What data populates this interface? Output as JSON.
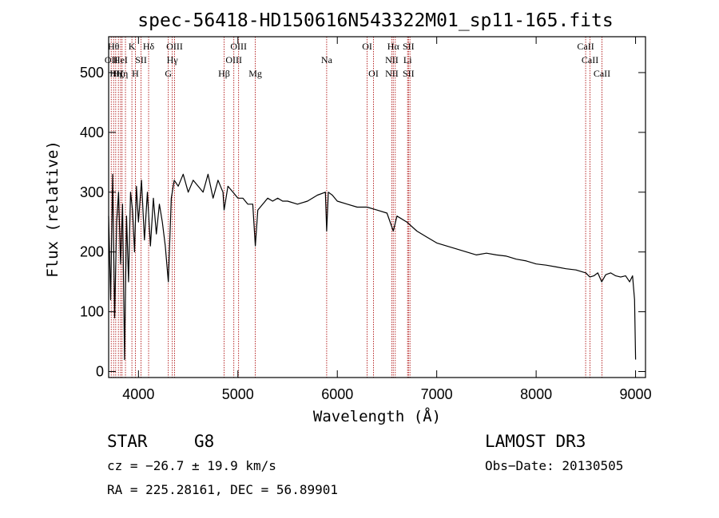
{
  "chart_data": {
    "type": "line",
    "title": "spec-56418-HD150616N543322M01_sp11-165.fits",
    "xlabel": "Wavelength (Å)",
    "ylabel": "Flux (relative)",
    "xlim": [
      3700,
      9100
    ],
    "ylim": [
      -10,
      560
    ],
    "xticks": [
      4000,
      5000,
      6000,
      7000,
      8000,
      9000
    ],
    "yticks": [
      0,
      100,
      200,
      300,
      400,
      500
    ],
    "series": [
      {
        "name": "spectrum",
        "x": [
          3700,
          3720,
          3740,
          3760,
          3780,
          3800,
          3820,
          3840,
          3860,
          3880,
          3900,
          3920,
          3940,
          3960,
          3980,
          4000,
          4030,
          4060,
          4090,
          4120,
          4150,
          4180,
          4210,
          4240,
          4270,
          4300,
          4330,
          4360,
          4400,
          4450,
          4500,
          4550,
          4600,
          4650,
          4700,
          4750,
          4800,
          4850,
          4861,
          4900,
          4950,
          5000,
          5050,
          5100,
          5150,
          5175,
          5200,
          5250,
          5300,
          5350,
          5400,
          5450,
          5500,
          5600,
          5700,
          5800,
          5880,
          5893,
          5910,
          5950,
          6000,
          6100,
          6200,
          6300,
          6400,
          6500,
          6563,
          6600,
          6700,
          6800,
          6900,
          7000,
          7100,
          7200,
          7300,
          7400,
          7500,
          7600,
          7700,
          7800,
          7900,
          8000,
          8100,
          8200,
          8300,
          8400,
          8500,
          8540,
          8580,
          8620,
          8660,
          8700,
          8750,
          8800,
          8850,
          8900,
          8940,
          8970,
          8990,
          9000
        ],
        "values": [
          260,
          120,
          330,
          90,
          250,
          300,
          180,
          280,
          20,
          260,
          150,
          300,
          270,
          200,
          310,
          250,
          320,
          220,
          300,
          210,
          290,
          230,
          280,
          250,
          210,
          150,
          290,
          320,
          310,
          330,
          300,
          320,
          310,
          300,
          330,
          290,
          320,
          300,
          270,
          310,
          300,
          290,
          290,
          280,
          280,
          210,
          270,
          280,
          290,
          285,
          290,
          285,
          285,
          280,
          285,
          295,
          300,
          235,
          300,
          295,
          285,
          280,
          275,
          275,
          270,
          265,
          235,
          260,
          250,
          235,
          225,
          215,
          210,
          205,
          200,
          195,
          198,
          195,
          193,
          188,
          185,
          180,
          178,
          175,
          172,
          170,
          165,
          158,
          160,
          165,
          150,
          162,
          165,
          160,
          158,
          160,
          150,
          160,
          120,
          20
        ]
      }
    ],
    "lines": [
      {
        "wl": 3726,
        "labels": [
          {
            "text": "OII",
            "row": 1
          }
        ]
      },
      {
        "wl": 3750,
        "labels": [
          {
            "text": "Hθ",
            "row": 0
          }
        ]
      },
      {
        "wl": 3771,
        "labels": [
          {
            "text": "Hη",
            "row": 2
          }
        ]
      },
      {
        "wl": 3798,
        "labels": [
          {
            "text": "Hζ",
            "row": 2
          }
        ]
      },
      {
        "wl": 3820,
        "labels": [
          {
            "text": "HeI",
            "row": 1
          }
        ]
      },
      {
        "wl": 3835,
        "labels": [
          {
            "text": "Hη",
            "row": 2
          }
        ]
      },
      {
        "wl": 3869,
        "labels": [
          {
            "text": "",
            "row": 1
          }
        ]
      },
      {
        "wl": 3934,
        "labels": [
          {
            "text": "K",
            "row": 0
          }
        ]
      },
      {
        "wl": 3969,
        "labels": [
          {
            "text": "H",
            "row": 2
          }
        ]
      },
      {
        "wl": 4026,
        "labels": [
          {
            "text": "SII",
            "row": 1
          }
        ]
      },
      {
        "wl": 4102,
        "labels": [
          {
            "text": "Hδ",
            "row": 0
          }
        ]
      },
      {
        "wl": 4300,
        "labels": [
          {
            "text": "G",
            "row": 2
          }
        ]
      },
      {
        "wl": 4340,
        "labels": [
          {
            "text": "Hγ",
            "row": 1
          }
        ]
      },
      {
        "wl": 4363,
        "labels": [
          {
            "text": "OIII",
            "row": 0
          }
        ]
      },
      {
        "wl": 4861,
        "labels": [
          {
            "text": "Hβ",
            "row": 2
          }
        ]
      },
      {
        "wl": 4959,
        "labels": [
          {
            "text": "OIII",
            "row": 1
          }
        ]
      },
      {
        "wl": 5007,
        "labels": [
          {
            "text": "OIII",
            "row": 0
          }
        ]
      },
      {
        "wl": 5175,
        "labels": [
          {
            "text": "Mg",
            "row": 2
          }
        ]
      },
      {
        "wl": 5893,
        "labels": [
          {
            "text": "Na",
            "row": 1
          }
        ]
      },
      {
        "wl": 6300,
        "labels": [
          {
            "text": "OI",
            "row": 0
          }
        ]
      },
      {
        "wl": 6364,
        "labels": [
          {
            "text": "OI",
            "row": 2
          }
        ]
      },
      {
        "wl": 6548,
        "labels": [
          {
            "text": "NII",
            "row": 1
          },
          {
            "text": "NII",
            "row": 2
          }
        ]
      },
      {
        "wl": 6563,
        "labels": [
          {
            "text": "Hα",
            "row": 0
          }
        ]
      },
      {
        "wl": 6583,
        "labels": [
          {
            "text": "",
            "row": 1
          }
        ]
      },
      {
        "wl": 6707,
        "labels": [
          {
            "text": "Li",
            "row": 1
          }
        ]
      },
      {
        "wl": 6716,
        "labels": [
          {
            "text": "SII",
            "row": 0
          },
          {
            "text": "SII",
            "row": 2
          }
        ]
      },
      {
        "wl": 6731,
        "labels": [
          {
            "text": "",
            "row": 2
          }
        ]
      },
      {
        "wl": 8498,
        "labels": [
          {
            "text": "CaII",
            "row": 0
          }
        ]
      },
      {
        "wl": 8542,
        "labels": [
          {
            "text": "CaII",
            "row": 1
          }
        ]
      },
      {
        "wl": 8662,
        "labels": [
          {
            "text": "CaII",
            "row": 2
          }
        ]
      }
    ]
  },
  "info": {
    "class_label": "STAR",
    "subclass_label": "G8",
    "survey_label": "LAMOST DR3",
    "redshift": "cz = −26.7 ± 19.9 km/s",
    "obs_date": "Obs−Date: 20130505",
    "coords": "RA = 225.28161, DEC =  56.89901"
  }
}
